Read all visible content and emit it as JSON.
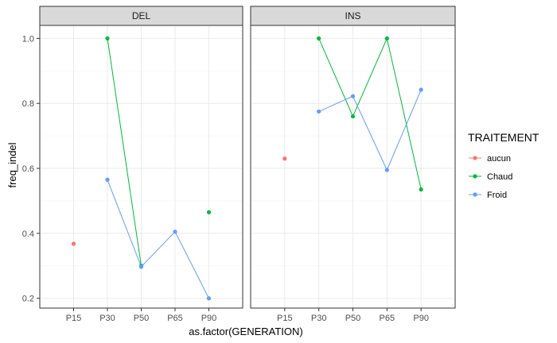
{
  "chart_data": {
    "type": "line",
    "xlabel": "as.factor(GENERATION)",
    "ylabel": "freq_indel",
    "ylim": [
      0.17,
      1.04
    ],
    "yticks": [
      0.2,
      0.4,
      0.6,
      0.8,
      1.0
    ],
    "ytick_labels": [
      "0.2",
      "0.4",
      "0.6",
      "0.8",
      "1.0"
    ],
    "categories": [
      "P15",
      "P30",
      "P50",
      "P65",
      "P90"
    ],
    "grid": true,
    "legend": {
      "title": "TRAITEMENT",
      "position": "right",
      "entries": [
        {
          "name": "aucun",
          "color": "#F8766D"
        },
        {
          "name": "Chaud",
          "color": "#00BA38"
        },
        {
          "name": "Froid",
          "color": "#619CFF"
        }
      ]
    },
    "facets": [
      {
        "label": "DEL",
        "series": [
          {
            "name": "aucun",
            "color": "#F8766D",
            "values": [
              0.368,
              null,
              null,
              null,
              null
            ]
          },
          {
            "name": "Chaud",
            "color": "#00BA38",
            "values": [
              null,
              1.0,
              0.3,
              null,
              0.465
            ]
          },
          {
            "name": "Froid",
            "color": "#619CFF",
            "values": [
              null,
              0.565,
              0.297,
              0.405,
              0.2
            ]
          }
        ]
      },
      {
        "label": "INS",
        "series": [
          {
            "name": "aucun",
            "color": "#F8766D",
            "values": [
              0.63,
              null,
              null,
              null,
              null
            ]
          },
          {
            "name": "Chaud",
            "color": "#00BA38",
            "values": [
              null,
              1.0,
              0.76,
              1.0,
              0.535
            ]
          },
          {
            "name": "Froid",
            "color": "#619CFF",
            "values": [
              null,
              0.775,
              0.822,
              0.595,
              0.842
            ]
          }
        ]
      }
    ]
  }
}
